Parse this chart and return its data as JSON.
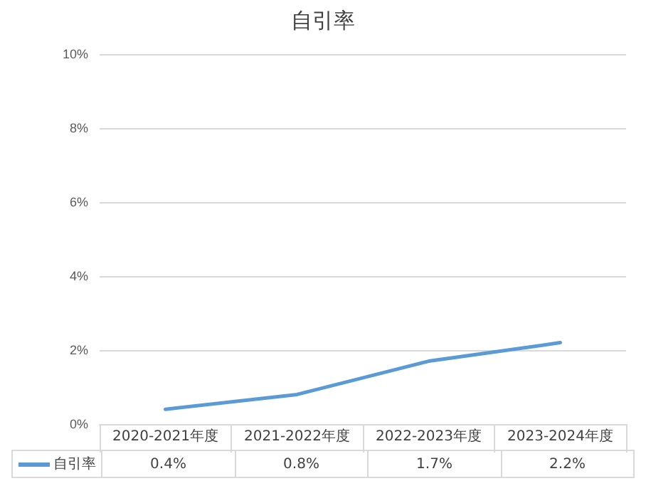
{
  "chart_data": {
    "type": "line",
    "title": "自引率",
    "categories": [
      "2020-2021年度",
      "2021-2022年度",
      "2022-2023年度",
      "2023-2024年度"
    ],
    "series": [
      {
        "name": "自引率",
        "color": "#5b9bd5",
        "values": [
          0.4,
          0.8,
          1.7,
          2.2
        ],
        "value_labels": [
          "0.4%",
          "0.8%",
          "1.7%",
          "2.2%"
        ]
      }
    ],
    "ylim": [
      0,
      10
    ],
    "yticks": [
      {
        "value": 0,
        "label": "0%"
      },
      {
        "value": 2,
        "label": "2%"
      },
      {
        "value": 4,
        "label": "4%"
      },
      {
        "value": 6,
        "label": "6%"
      },
      {
        "value": 8,
        "label": "8%"
      },
      {
        "value": 10,
        "label": "10%"
      }
    ],
    "grid": "y",
    "legend": "bottom left",
    "marker": "none",
    "line_style": "solid"
  }
}
